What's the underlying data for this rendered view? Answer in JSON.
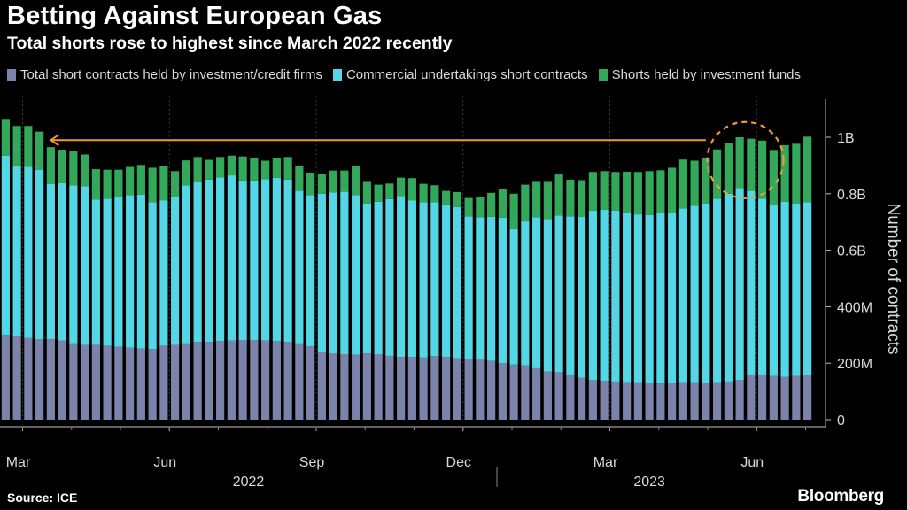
{
  "title": "Betting Against European Gas",
  "subtitle": "Total shorts rose to highest since March 2022 recently",
  "source": "Source: ICE",
  "brand": "Bloomberg",
  "colors": {
    "background": "#000000",
    "investment_credit": "#7b83ab",
    "commercial": "#53d7e6",
    "investment_funds": "#33a85a",
    "annotation": "#f39a2d",
    "axis_text": "#d9d9d9",
    "gridline": "#3a3a3a"
  },
  "legend": [
    {
      "label": "Total short contracts held by investment/credit firms",
      "color": "#7b83ab"
    },
    {
      "label": "Commercial undertakings short contracts",
      "color": "#53d7e6"
    },
    {
      "label": "Shorts held by investment funds",
      "color": "#33a85a"
    }
  ],
  "chart_data": {
    "type": "bar",
    "stacked": true,
    "ylabel": "Number of contracts",
    "ylim": [
      0,
      1100000000
    ],
    "yticks": [
      {
        "value": 0,
        "label": "0"
      },
      {
        "value": 200000000,
        "label": "200M"
      },
      {
        "value": 400000000,
        "label": "400M"
      },
      {
        "value": 600000000,
        "label": "0.6B"
      },
      {
        "value": 800000000,
        "label": "0.8B"
      },
      {
        "value": 1000000000,
        "label": "1B"
      }
    ],
    "xticks": [
      {
        "index": 1.5,
        "label": "Mar"
      },
      {
        "index": 14.5,
        "label": "Jun"
      },
      {
        "index": 27.5,
        "label": "Sep"
      },
      {
        "index": 40.5,
        "label": "Dec"
      },
      {
        "index": 53.5,
        "label": "Mar"
      },
      {
        "index": 66.5,
        "label": "Jun"
      }
    ],
    "year_labels": [
      {
        "center_index": 21.5,
        "label": "2022"
      },
      {
        "center_index": 57.0,
        "label": "2023"
      }
    ],
    "year_divider_index": 43.5,
    "reference_line": {
      "value": 990000000,
      "from_index": 4,
      "to_index": 62,
      "arrow": "left"
    },
    "highlight": {
      "center_index": 65.5,
      "center_value": 960000000,
      "shape": "dashed-circle"
    },
    "series": [
      {
        "name": "Total short contracts held by investment/credit firms",
        "values": [
          300000000,
          295000000,
          290000000,
          285000000,
          285000000,
          280000000,
          270000000,
          265000000,
          265000000,
          262000000,
          258000000,
          255000000,
          252000000,
          250000000,
          262000000,
          265000000,
          270000000,
          275000000,
          275000000,
          278000000,
          280000000,
          282000000,
          282000000,
          280000000,
          278000000,
          275000000,
          270000000,
          260000000,
          240000000,
          235000000,
          232000000,
          230000000,
          235000000,
          232000000,
          226000000,
          222000000,
          222000000,
          220000000,
          225000000,
          222000000,
          218000000,
          215000000,
          212000000,
          208000000,
          200000000,
          195000000,
          192000000,
          182000000,
          170000000,
          168000000,
          160000000,
          148000000,
          140000000,
          138000000,
          135000000,
          133000000,
          132000000,
          130000000,
          128000000,
          130000000,
          133000000,
          132000000,
          130000000,
          132000000,
          135000000,
          140000000,
          160000000,
          158000000,
          155000000,
          152000000,
          155000000,
          158000000
        ]
      },
      {
        "name": "Commercial undertakings short contracts",
        "values": [
          635000000,
          605000000,
          605000000,
          600000000,
          550000000,
          558000000,
          560000000,
          562000000,
          515000000,
          520000000,
          530000000,
          540000000,
          545000000,
          520000000,
          515000000,
          525000000,
          560000000,
          565000000,
          575000000,
          580000000,
          585000000,
          565000000,
          565000000,
          572000000,
          578000000,
          575000000,
          540000000,
          535000000,
          560000000,
          570000000,
          575000000,
          565000000,
          530000000,
          540000000,
          555000000,
          570000000,
          555000000,
          550000000,
          545000000,
          540000000,
          535000000,
          505000000,
          505000000,
          510000000,
          515000000,
          480000000,
          510000000,
          535000000,
          540000000,
          555000000,
          560000000,
          570000000,
          600000000,
          605000000,
          605000000,
          600000000,
          595000000,
          595000000,
          605000000,
          602000000,
          615000000,
          625000000,
          635000000,
          650000000,
          665000000,
          680000000,
          650000000,
          625000000,
          605000000,
          620000000,
          610000000,
          612000000
        ]
      },
      {
        "name": "Shorts held by investment funds",
        "values": [
          130000000,
          140000000,
          145000000,
          135000000,
          130000000,
          118000000,
          122000000,
          112000000,
          107000000,
          103000000,
          97000000,
          100000000,
          105000000,
          122000000,
          120000000,
          90000000,
          88000000,
          90000000,
          70000000,
          72000000,
          70000000,
          85000000,
          80000000,
          65000000,
          70000000,
          80000000,
          90000000,
          80000000,
          70000000,
          77000000,
          75000000,
          105000000,
          80000000,
          60000000,
          55000000,
          65000000,
          78000000,
          65000000,
          60000000,
          48000000,
          53000000,
          65000000,
          70000000,
          85000000,
          100000000,
          125000000,
          130000000,
          128000000,
          135000000,
          145000000,
          130000000,
          130000000,
          137000000,
          137000000,
          137000000,
          145000000,
          150000000,
          155000000,
          150000000,
          160000000,
          173000000,
          160000000,
          160000000,
          175000000,
          178000000,
          180000000,
          185000000,
          205000000,
          195000000,
          200000000,
          212000000,
          232000000
        ]
      }
    ]
  }
}
